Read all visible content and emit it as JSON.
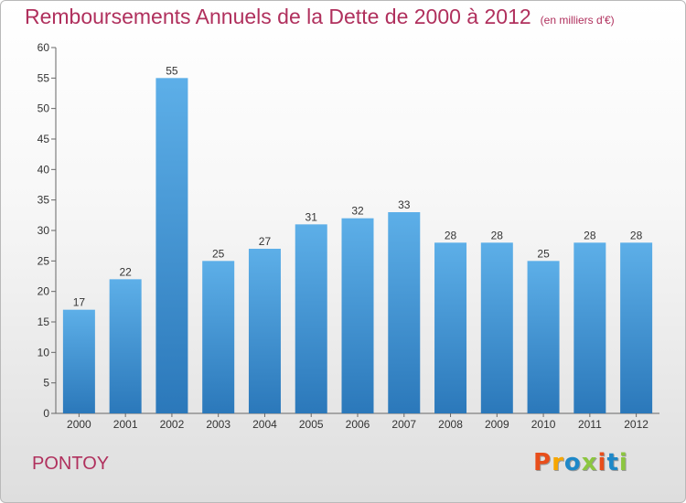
{
  "header": {
    "title": "Remboursements Annuels de la Dette de 2000 à 2012",
    "unit": "(en milliers d'€)"
  },
  "footer": {
    "commune": "PONTOY",
    "logo_text": "Proxiti",
    "logo_colors": [
      "#e84e1b",
      "#f7a600",
      "#1e88c8",
      "#8cc63f",
      "#e84e1b",
      "#1e88c8",
      "#8cc63f"
    ]
  },
  "colors": {
    "title": "#b0305d",
    "bar_top": "#5dafe8",
    "bar_bottom": "#2b78ba"
  },
  "chart_data": {
    "type": "bar",
    "title": "Remboursements Annuels de la Dette de 2000 à 2012",
    "categories": [
      "2000",
      "2001",
      "2002",
      "2003",
      "2004",
      "2005",
      "2006",
      "2007",
      "2008",
      "2009",
      "2010",
      "2011",
      "2012"
    ],
    "values": [
      17,
      22,
      55,
      25,
      27,
      31,
      32,
      33,
      28,
      28,
      25,
      28,
      28
    ],
    "ylim": [
      0,
      60
    ],
    "yticks": [
      0,
      5,
      10,
      15,
      20,
      25,
      30,
      35,
      40,
      45,
      50,
      55,
      60
    ],
    "grid": false,
    "data_labels": true
  }
}
